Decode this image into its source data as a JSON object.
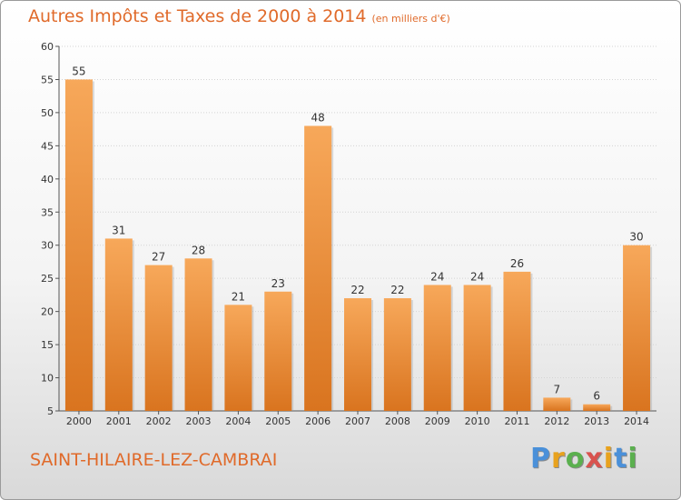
{
  "header": {
    "title": "Autres Impôts et Taxes de 2000 à 2014",
    "unit": "(en milliers d'€)"
  },
  "footer": {
    "commune": "SAINT-HILAIRE-LEZ-CAMBRAI",
    "brand": [
      "P",
      "r",
      "o",
      "x",
      "i",
      "t",
      "i"
    ]
  },
  "colors": {
    "accent": "#e06a2a",
    "bar_light": "#f7a85a",
    "bar_dark": "#d9741f",
    "brand_letters": [
      "#4a90d9",
      "#e8a21e",
      "#5bb04f",
      "#d9534f",
      "#e8a21e",
      "#4a90d9",
      "#5bb04f"
    ]
  },
  "chart_data": {
    "type": "bar",
    "title": "Autres Impôts et Taxes de 2000 à 2014",
    "subtitle": "(en milliers d'€)",
    "categories": [
      "2000",
      "2001",
      "2002",
      "2003",
      "2004",
      "2005",
      "2006",
      "2007",
      "2008",
      "2009",
      "2010",
      "2011",
      "2012",
      "2013",
      "2014"
    ],
    "values": [
      55,
      31,
      27,
      28,
      21,
      23,
      48,
      22,
      22,
      24,
      24,
      26,
      7,
      6,
      30
    ],
    "ylim": [
      5,
      60
    ],
    "yticks": [
      5,
      10,
      15,
      20,
      25,
      30,
      35,
      40,
      45,
      50,
      55,
      60
    ],
    "grid": true,
    "legend": "none"
  }
}
